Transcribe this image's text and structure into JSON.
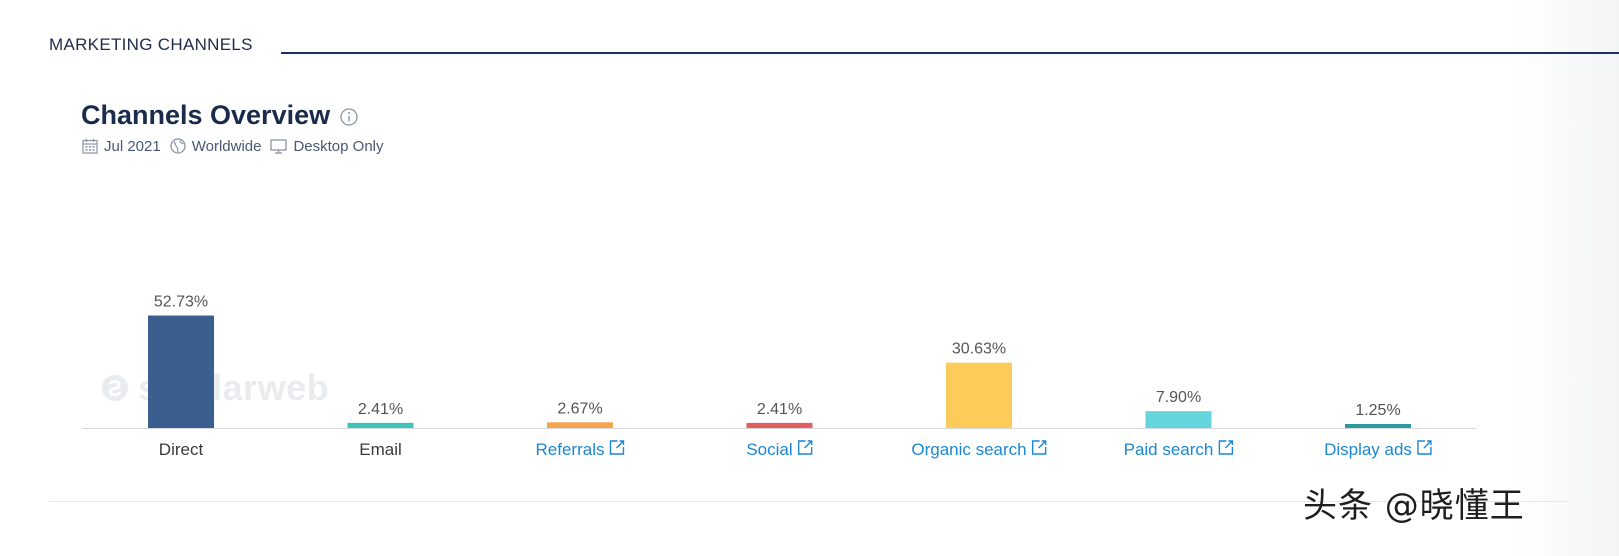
{
  "section": {
    "title": "MARKETING CHANNELS"
  },
  "card": {
    "title": "Channels Overview",
    "date": "Jul 2021",
    "region": "Worldwide",
    "device": "Desktop Only",
    "chart_watermark": "similarweb"
  },
  "watermark_text": "头条 @晓懂王",
  "colors": {
    "link": "#1b87d4",
    "label": "#3a3a3a",
    "value_label": "#555555",
    "baseline": "#d5d8dd"
  },
  "chart_data": {
    "type": "bar",
    "title": "",
    "xlabel": "",
    "ylabel": "",
    "ylim": [
      0,
      60
    ],
    "categories": [
      "Direct",
      "Email",
      "Referrals",
      "Social",
      "Organic search",
      "Paid search",
      "Display ads"
    ],
    "values": [
      52.73,
      2.41,
      2.67,
      2.41,
      30.63,
      7.9,
      1.25
    ],
    "value_labels": [
      "52.73%",
      "2.41%",
      "2.67%",
      "2.41%",
      "30.63%",
      "7.90%",
      "1.25%"
    ],
    "colors": [
      "#3a5f8f",
      "#3ec5b9",
      "#f7a54a",
      "#e35e5e",
      "#fbcc5a",
      "#62d6dc",
      "#2f9a9e"
    ],
    "external_link": [
      false,
      false,
      true,
      true,
      true,
      true,
      true
    ]
  }
}
